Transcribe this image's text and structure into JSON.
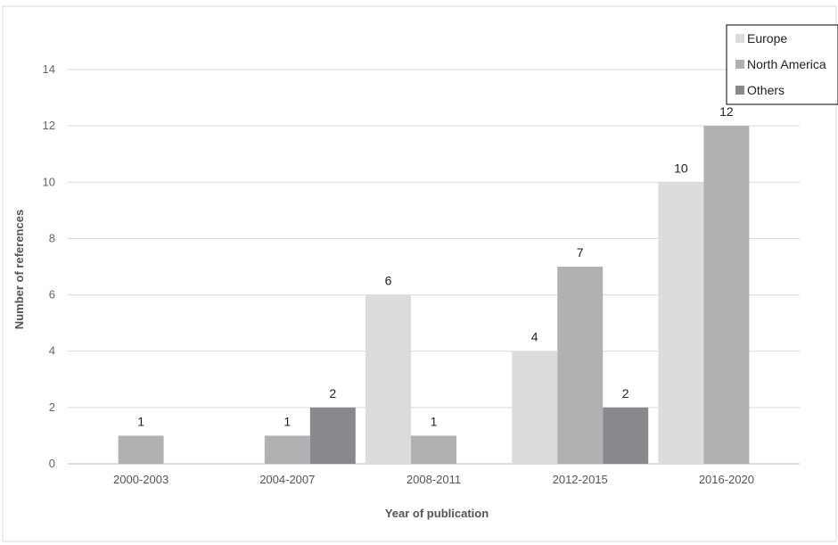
{
  "chart_data": {
    "type": "bar",
    "categories": [
      "2000-2003",
      "2004-2007",
      "2008-2011",
      "2012-2015",
      "2016-2020"
    ],
    "series": [
      {
        "name": "Europe",
        "values": [
          0,
          0,
          6,
          4,
          10
        ],
        "color": "#dcdcdd"
      },
      {
        "name": "North America",
        "values": [
          1,
          1,
          1,
          7,
          12
        ],
        "color": "#b1b1b4"
      },
      {
        "name": "Others",
        "values": [
          0,
          2,
          0,
          2,
          0
        ],
        "color": "#88898c"
      }
    ],
    "xlabel": "Year of publication",
    "ylabel": "Number of references",
    "ylim": [
      0,
      14
    ],
    "yticks": [
      0,
      2,
      4,
      6,
      8,
      10,
      12,
      14
    ],
    "grid": true,
    "legend": "top-right",
    "data_labels": true
  }
}
